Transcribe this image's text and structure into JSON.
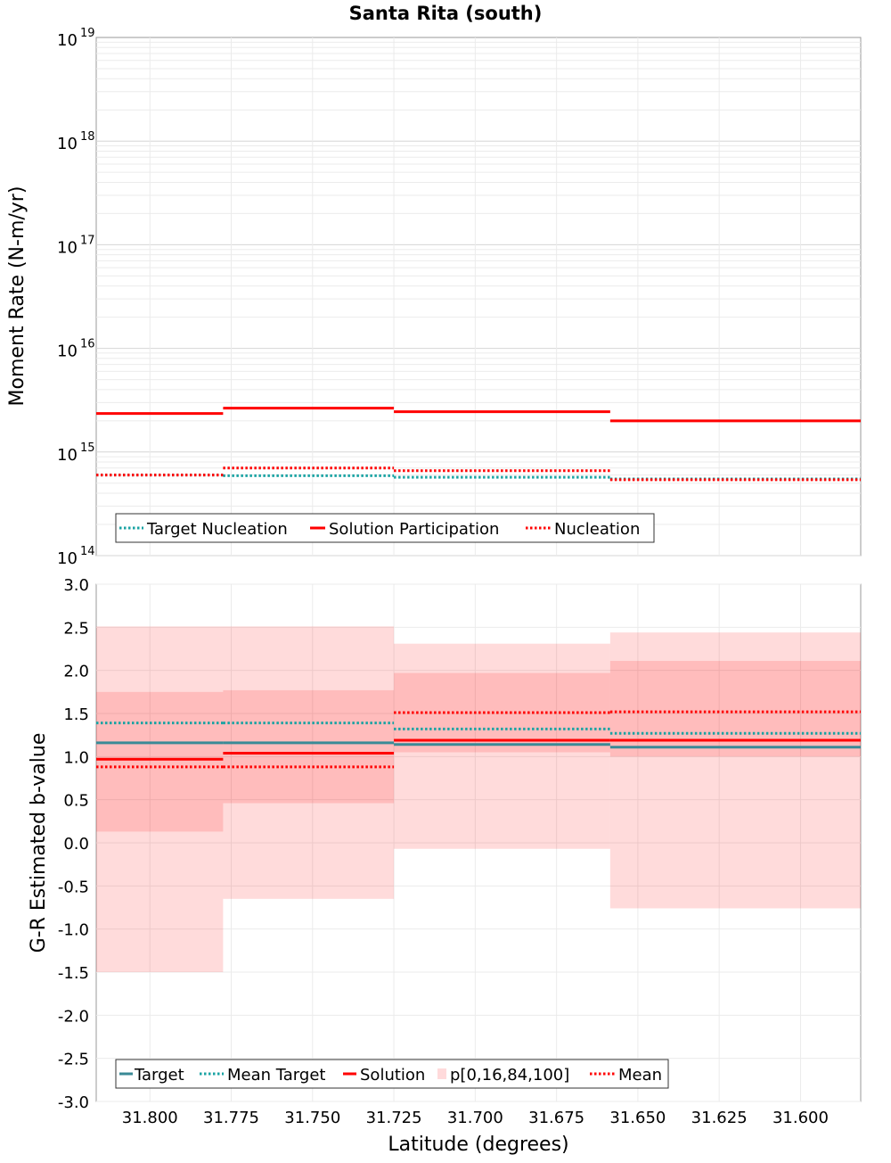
{
  "chart_data": [
    {
      "type": "line",
      "title": "Santa Rita (south)",
      "ylabel": "Moment Rate (N-m/yr)",
      "xlim": [
        31.8165,
        31.5815
      ],
      "xaxis": "reversed",
      "yscale": "log",
      "ylim": [
        100000000000000.0,
        1e+19
      ],
      "y_ticks": [
        {
          "base": "10",
          "exp": "14",
          "v": 14
        },
        {
          "base": "10",
          "exp": "15",
          "v": 15
        },
        {
          "base": "10",
          "exp": "16",
          "v": 16
        },
        {
          "base": "10",
          "exp": "17",
          "v": 17
        },
        {
          "base": "10",
          "exp": "18",
          "v": 18
        },
        {
          "base": "10",
          "exp": "19",
          "v": 19
        }
      ],
      "grid": true,
      "legend_position": "bottom-left",
      "legend": [
        "Target Nucleation",
        "Solution Participation",
        "Nucleation"
      ],
      "segments": [
        {
          "x0": 31.8165,
          "x1": 31.7775
        },
        {
          "x0": 31.7775,
          "x1": 31.725
        },
        {
          "x0": 31.725,
          "x1": 31.6585
        },
        {
          "x0": 31.6585,
          "x1": 31.5815
        }
      ],
      "series": [
        {
          "name": "Target Nucleation",
          "style": "dotted",
          "color": "#1aa3a3",
          "values": [
            600000000000000.0,
            590000000000000.0,
            570000000000000.0,
            550000000000000.0
          ]
        },
        {
          "name": "Solution Participation",
          "style": "solid",
          "color": "#ff0000",
          "values": [
            2350000000000000.0,
            2650000000000000.0,
            2450000000000000.0,
            2000000000000000.0
          ]
        },
        {
          "name": "Nucleation",
          "style": "dotted",
          "color": "#ff0000",
          "values": [
            600000000000000.0,
            700000000000000.0,
            660000000000000.0,
            540000000000000.0
          ]
        }
      ]
    },
    {
      "type": "line",
      "xlabel": "Latitude (degrees)",
      "ylabel": "G-R Estimated b-value",
      "xlim": [
        31.8165,
        31.5815
      ],
      "ylim": [
        -3.0,
        3.0
      ],
      "y_ticks": [
        "-3.0",
        "-2.5",
        "-2.0",
        "-1.5",
        "-1.0",
        "-0.5",
        "0.0",
        "0.5",
        "1.0",
        "1.5",
        "2.0",
        "2.5",
        "3.0"
      ],
      "x_ticks": [
        "31.800",
        "31.775",
        "31.750",
        "31.725",
        "31.700",
        "31.675",
        "31.650",
        "31.625",
        "31.600"
      ],
      "grid": true,
      "legend_position": "bottom-left",
      "legend": [
        "Target",
        "Mean Target",
        "Solution",
        "p[0,16,84,100]",
        "Mean"
      ],
      "segments": [
        {
          "x0": 31.8165,
          "x1": 31.7775
        },
        {
          "x0": 31.7775,
          "x1": 31.725
        },
        {
          "x0": 31.725,
          "x1": 31.6585
        },
        {
          "x0": 31.6585,
          "x1": 31.5815
        }
      ],
      "p_range": {
        "name": "p[0,16,84,100]",
        "color": "#ff0000",
        "p0": [
          -1.5,
          -0.65,
          -0.07,
          -0.76
        ],
        "p16": [
          0.13,
          0.46,
          1.05,
          1.0
        ],
        "p84": [
          1.75,
          1.77,
          1.97,
          2.11
        ],
        "p100": [
          2.51,
          2.51,
          2.31,
          2.44
        ]
      },
      "series": [
        {
          "name": "Target",
          "style": "solid",
          "color": "#3a8a96",
          "values": [
            1.16,
            1.16,
            1.14,
            1.11
          ]
        },
        {
          "name": "Mean Target",
          "style": "dotted",
          "color": "#1aa3a3",
          "values": [
            1.39,
            1.39,
            1.32,
            1.27
          ]
        },
        {
          "name": "Solution",
          "style": "solid",
          "color": "#ff0000",
          "values": [
            0.97,
            1.04,
            1.19,
            1.19
          ]
        },
        {
          "name": "Mean",
          "style": "dotted",
          "color": "#ff0000",
          "values": [
            0.88,
            0.88,
            1.51,
            1.52
          ]
        }
      ]
    }
  ]
}
